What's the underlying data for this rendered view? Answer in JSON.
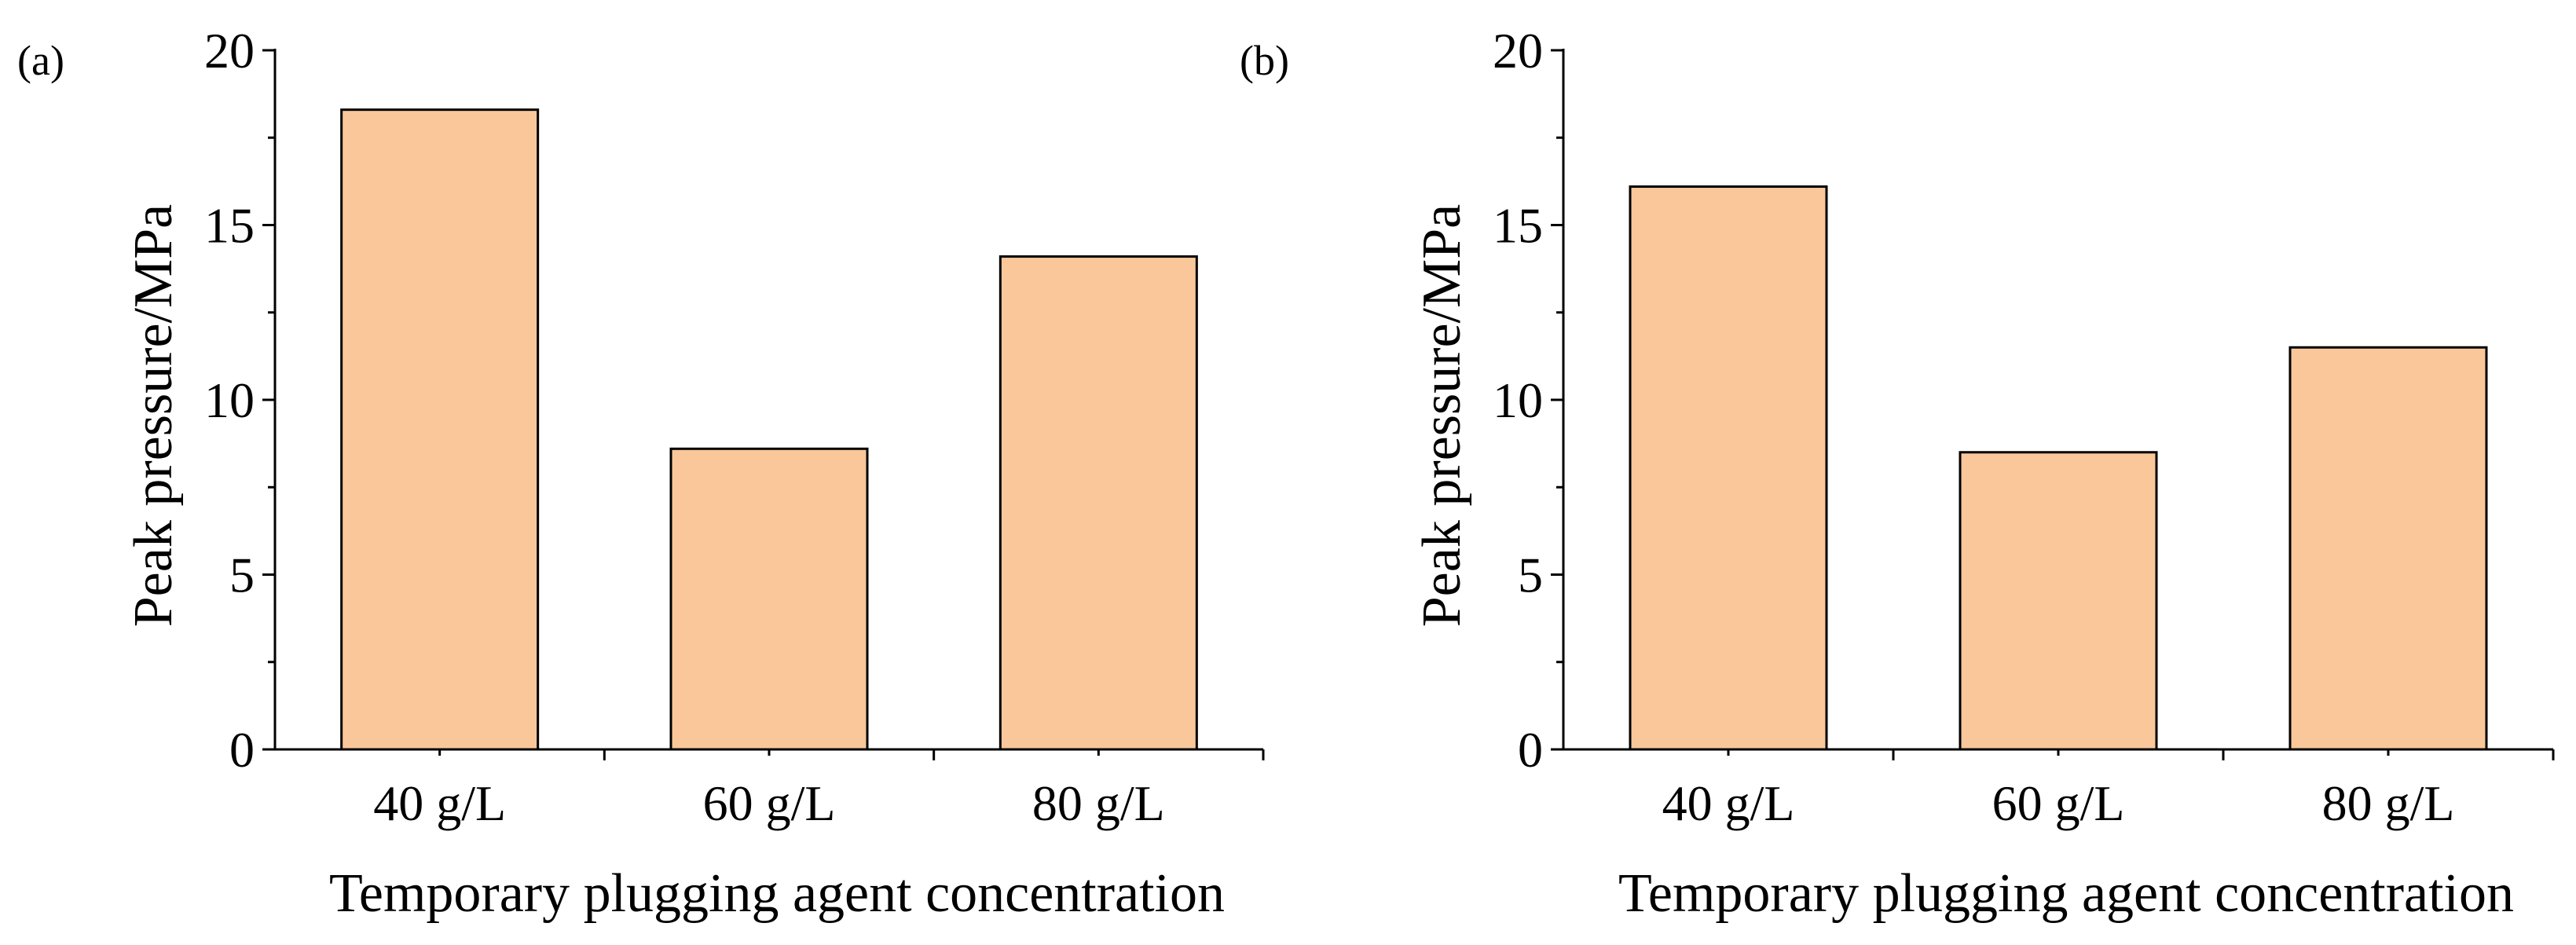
{
  "chart_data": [
    {
      "type": "bar",
      "panel_label": "(a)",
      "categories": [
        "40 g/L",
        "60 g/L",
        "80 g/L"
      ],
      "values": [
        18.3,
        8.6,
        14.1
      ],
      "xlabel": "Temporary plugging agent concentration",
      "ylabel": "Peak pressure/MPa",
      "ylim": [
        0,
        20
      ],
      "yticks": [
        0,
        5,
        10,
        15,
        20
      ],
      "bar_color": "#F9C79A",
      "bar_edge_color": "#000000",
      "grid": false
    },
    {
      "type": "bar",
      "panel_label": "(b)",
      "categories": [
        "40 g/L",
        "60 g/L",
        "80 g/L"
      ],
      "values": [
        16.1,
        8.5,
        11.5
      ],
      "xlabel": "Temporary plugging agent concentration",
      "ylabel": "Peak pressure/MPa",
      "ylim": [
        0,
        20
      ],
      "yticks": [
        0,
        5,
        10,
        15,
        20
      ],
      "bar_color": "#F9C79A",
      "bar_edge_color": "#000000",
      "grid": false
    }
  ]
}
